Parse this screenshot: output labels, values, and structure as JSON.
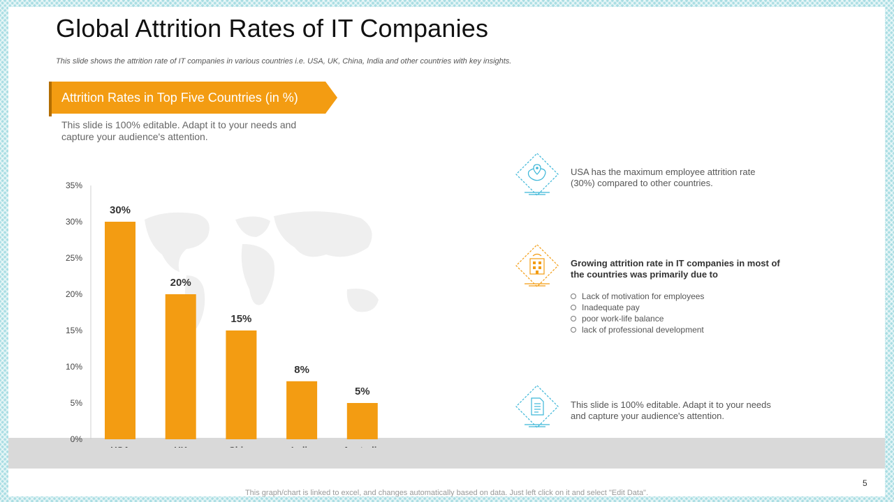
{
  "title": "Global Attrition Rates of IT Companies",
  "subtitle": "This slide shows the attrition rate of IT companies in various countries i.e. USA, UK, China, India and other countries with key insights.",
  "banner": "Attrition Rates in Top Five Countries (in %)",
  "editable_note": "This slide is 100% editable. Adapt it to your needs and capture your audience's attention.",
  "insights": [
    {
      "icon": "map-pin-icon",
      "text": "USA  has the maximum  employee attrition rate (30%) compared to other countries."
    },
    {
      "icon": "building-icon",
      "heading": "Growing attrition rate in IT companies in most of the countries was primarily due to",
      "bullets": [
        "Lack of motivation  for  employees",
        "Inadequate  pay",
        "poor  work-life  balance",
        "lack of professional  development"
      ]
    },
    {
      "icon": "document-icon",
      "text": "This slide is 100% editable. Adapt it to your needs and capture your audience's attention."
    }
  ],
  "footer_note": "This graph/chart is linked to excel, and changes automatically based on data. Just left click on it and select \"Edit Data\".",
  "page_number": "5",
  "colors": {
    "accent": "#f39c12",
    "teal": "#3bb6d8"
  },
  "chart_data": {
    "type": "bar",
    "title": "Attrition Rates in Top Five Countries (in %)",
    "categories": [
      "USA",
      "UK",
      "China",
      "India",
      "Australia"
    ],
    "values": [
      30,
      20,
      15,
      8,
      5
    ],
    "data_labels": [
      "30%",
      "20%",
      "15%",
      "8%",
      "5%"
    ],
    "yticks": [
      0,
      5,
      10,
      15,
      20,
      25,
      30,
      35
    ],
    "ytick_labels": [
      "0%",
      "5%",
      "10%",
      "15%",
      "20%",
      "25%",
      "30%",
      "35%"
    ],
    "ylim": [
      0,
      35
    ],
    "xlabel": "",
    "ylabel": "",
    "grid": false,
    "bar_color": "#f39c12"
  }
}
